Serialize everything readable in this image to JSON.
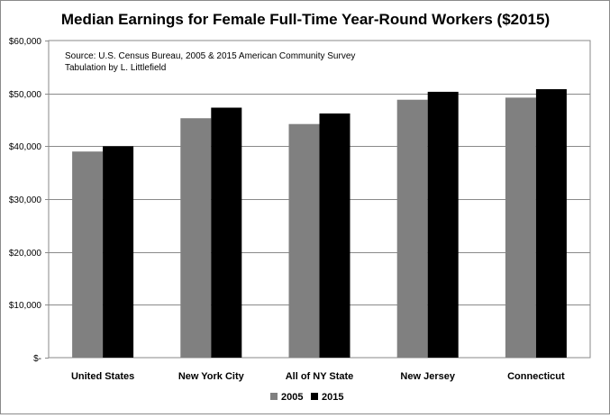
{
  "chart_data": {
    "type": "bar",
    "title": "Median Earnings for Female Full-Time Year-Round Workers ($2015)",
    "annotation": [
      "Source:  U.S. Census Bureau, 2005 & 2015 American Community Survey",
      "Tabulation by L. Littlefield"
    ],
    "categories": [
      "United States",
      "New York City",
      "All of NY State",
      "New Jersey",
      "Connecticut"
    ],
    "series": [
      {
        "name": "2005",
        "color": "#808080",
        "values": [
          39000,
          45300,
          44200,
          48800,
          49200
        ]
      },
      {
        "name": "2015",
        "color": "#000000",
        "values": [
          40000,
          47300,
          46200,
          50300,
          50800
        ]
      }
    ],
    "ylim": [
      0,
      60000
    ],
    "yticks": [
      0,
      10000,
      20000,
      30000,
      40000,
      50000,
      60000
    ],
    "ytick_labels": [
      "$-",
      "$10,000",
      "$20,000",
      "$30,000",
      "$40,000",
      "$50,000",
      "$60,000"
    ],
    "grid": true,
    "legend_position": "bottom"
  }
}
